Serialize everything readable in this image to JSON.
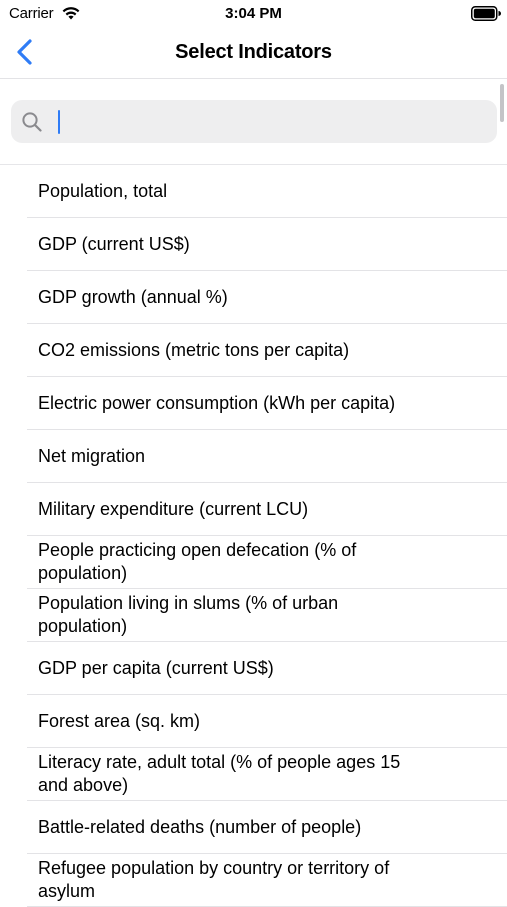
{
  "status_bar": {
    "carrier": "Carrier",
    "time": "3:04 PM",
    "wifi_icon": "wifi-icon",
    "battery_icon": "battery-icon"
  },
  "nav": {
    "title": "Select Indicators",
    "back_icon": "chevron-left-icon",
    "accent_color": "#2f7cf6"
  },
  "search": {
    "value": "",
    "placeholder": "",
    "icon": "search-icon"
  },
  "indicators": [
    {
      "label": "Population, total"
    },
    {
      "label": "GDP (current US$)"
    },
    {
      "label": "GDP growth (annual %)"
    },
    {
      "label": "CO2 emissions (metric tons per capita)"
    },
    {
      "label": "Electric power consumption (kWh per capita)"
    },
    {
      "label": "Net migration"
    },
    {
      "label": "Military expenditure (current LCU)"
    },
    {
      "label": "People practicing open defecation (% of population)"
    },
    {
      "label": "Population living in slums (% of urban population)"
    },
    {
      "label": "GDP per capita (current US$)"
    },
    {
      "label": "Forest area (sq. km)"
    },
    {
      "label": "Literacy rate, adult total (% of people ages 15 and above)"
    },
    {
      "label": "Battle-related deaths (number of people)"
    },
    {
      "label": "Refugee population by country or territory of asylum"
    }
  ]
}
